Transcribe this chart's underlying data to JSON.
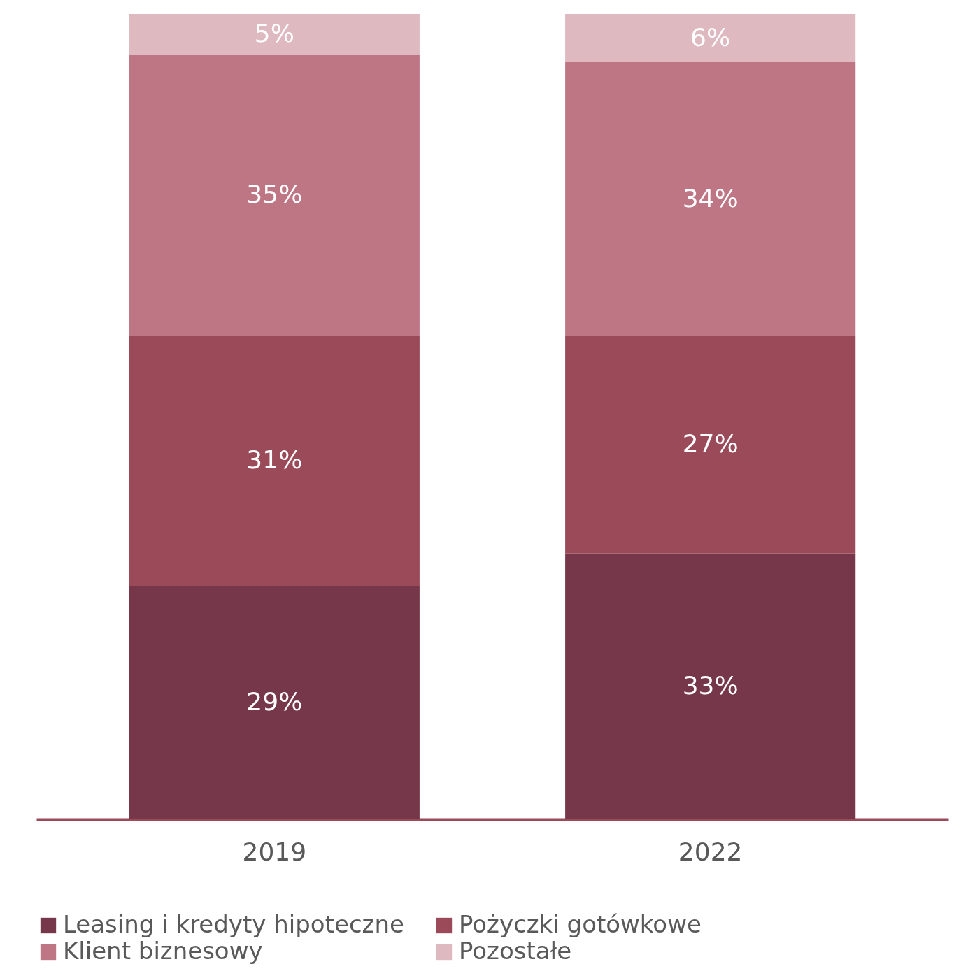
{
  "chart_data": {
    "type": "bar",
    "stacked": true,
    "legend": "bottom",
    "grid": false,
    "categories": [
      "2019",
      "2022"
    ],
    "series": [
      {
        "name": "Leasing i kredyty hipoteczne",
        "color": "#76374a",
        "values": [
          29,
          33
        ],
        "value_labels": [
          "29%",
          "33%"
        ]
      },
      {
        "name": "Pożyczki gotówkowe",
        "color": "#9a4a58",
        "values": [
          31,
          27
        ],
        "value_labels": [
          "31%",
          "27%"
        ]
      },
      {
        "name": "Klient biznesowy",
        "color": "#bf7684",
        "values": [
          35,
          34
        ],
        "value_labels": [
          "35%",
          "34%"
        ]
      },
      {
        "name": "Pozostałe",
        "color": "#deb9c0",
        "values": [
          5,
          6
        ],
        "value_labels": [
          "5%",
          "6%"
        ]
      }
    ]
  }
}
